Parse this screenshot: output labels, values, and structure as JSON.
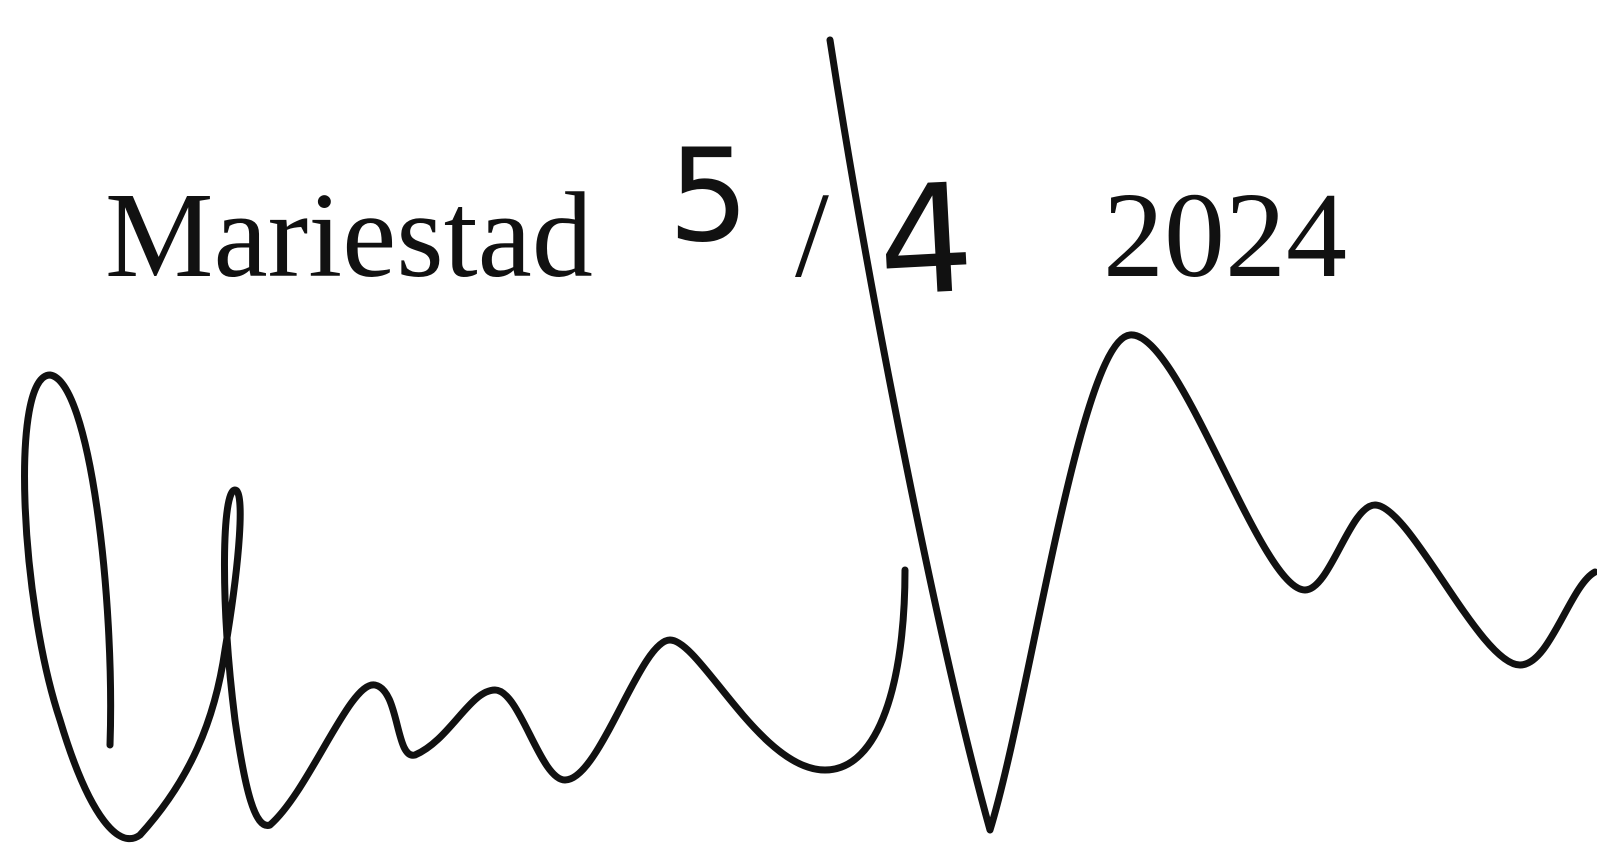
{
  "place": "Mariestad",
  "date": {
    "day": "5",
    "separator": "/",
    "month": "4",
    "year": "2024"
  }
}
